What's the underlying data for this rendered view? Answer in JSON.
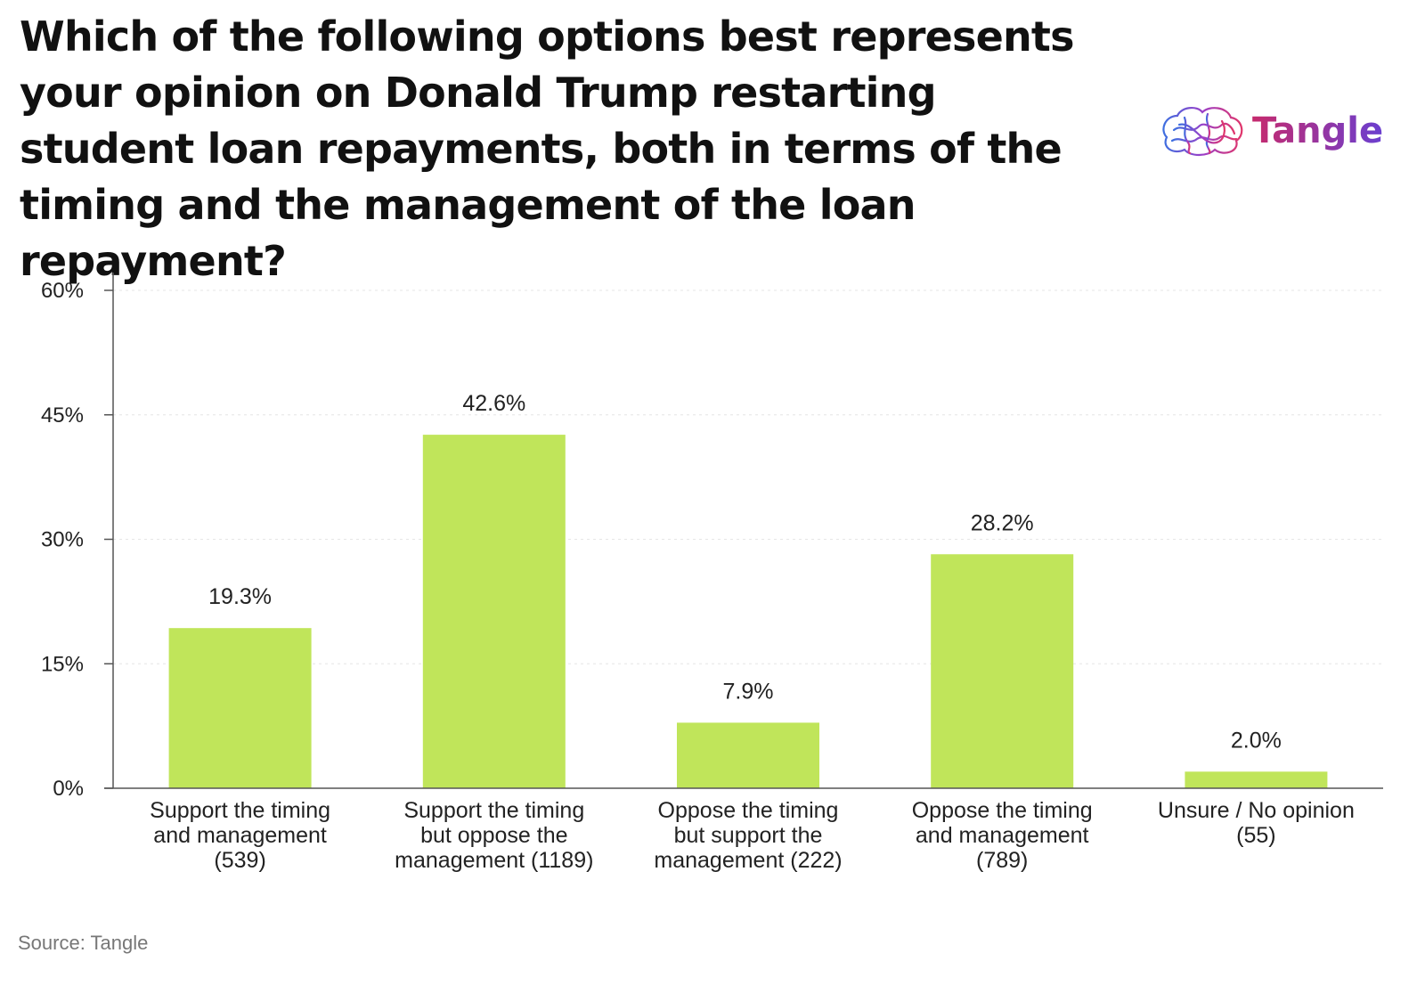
{
  "title": "Which of the following options best represents your opinion on Donald Trump restarting student loan repayments, both in terms of the timing and the management of the loan repayment?",
  "logo": {
    "text": "Tangle",
    "icon": "brain-icon"
  },
  "source": "Source: Tangle",
  "colors": {
    "bar": "#c0e55a",
    "axis": "#555555",
    "grid": "#e6e6e6"
  },
  "chart_data": {
    "type": "bar",
    "categories": [
      [
        "Support the timing",
        "and management",
        "(539)"
      ],
      [
        "Support the timing",
        "but oppose the",
        "management (1189)"
      ],
      [
        "Oppose the timing",
        "but support the",
        "management (222)"
      ],
      [
        "Oppose the timing",
        "and management",
        "(789)"
      ],
      [
        "Unsure / No opinion",
        "(55)"
      ]
    ],
    "values": [
      19.3,
      42.6,
      7.9,
      28.2,
      2.0
    ],
    "data_labels": [
      "19.3%",
      "42.6%",
      "7.9%",
      "28.2%",
      "2.0%"
    ],
    "ylim": [
      0,
      60
    ],
    "yticks": [
      0,
      15,
      30,
      45,
      60
    ],
    "ytick_labels": [
      "0%",
      "15%",
      "30%",
      "45%",
      "60%"
    ],
    "grid": true
  }
}
